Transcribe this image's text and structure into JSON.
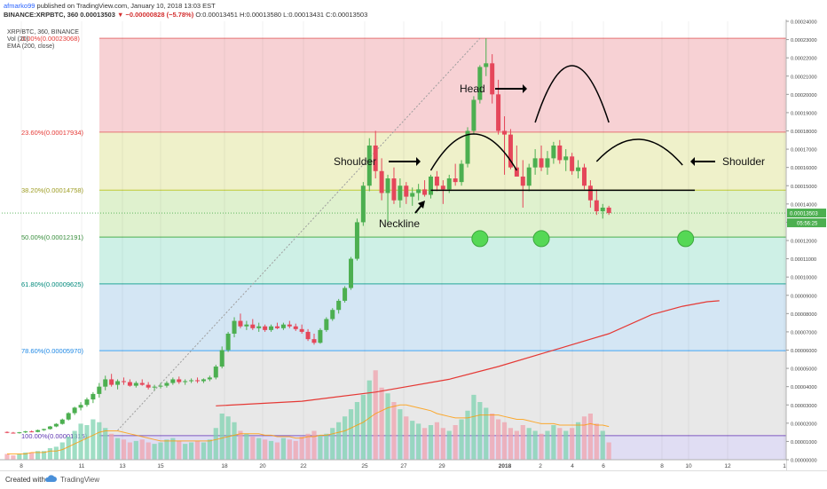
{
  "header": {
    "user": "afmarko99",
    "published": " published on TradingView.com, January 10, 2018 13:03 EST",
    "symbol_line": "BINANCE:XRPBTC, 360  0.00013503",
    "change": "▼ −0.00000828 (−5.78%)",
    "ohlc": " O:0.00013451  H:0.00013580  L:0.00013431  C:0.00013503"
  },
  "legend": {
    "symbol": "XRP/BTC, 360, BINANCE",
    "vol": "Vol (20)",
    "ema": "EMA (200, close)"
  },
  "footer": {
    "created_with": "Created with",
    "brand": "TradingView"
  },
  "colors": {
    "up": "#26a69a",
    "up_body": "#4caf50",
    "down": "#e5475a",
    "ema": "#e53935",
    "ema_vol": "#ff9800",
    "fib_line_red": "#e57373"
  },
  "chart_data": {
    "type": "candlestick",
    "ylim": [
      0.0,
      0.00024
    ],
    "y_ticks": [
      "0.00024000",
      "0.00023000",
      "0.00022000",
      "0.00021000",
      "0.00020000",
      "0.00019000",
      "0.00018000",
      "0.00017000",
      "0.00016000",
      "0.00015000",
      "0.00014000",
      "0.00013000",
      "0.00012000",
      "0.00011000",
      "0.00010000",
      "0.00009000",
      "0.00008000",
      "0.00007000",
      "0.00006000",
      "0.00005000",
      "0.00004000",
      "0.00003000",
      "0.00002000",
      "0.00001000",
      "0.00000000"
    ],
    "x_ticks": [
      "8",
      "11",
      "13",
      "15",
      "18",
      "20",
      "22",
      "25",
      "27",
      "29",
      "2018",
      "2",
      "4",
      "6",
      "8",
      "10",
      "12",
      "1"
    ],
    "last_price_label": "0.00013503",
    "countdown_label": "05:56:25",
    "fib_levels": [
      {
        "label": "0.00%(0.00023068)",
        "value": 0.00023068
      },
      {
        "label": "23.60%(0.00017934)",
        "value": 0.00017934
      },
      {
        "label": "38.20%(0.00014758)",
        "value": 0.00014758
      },
      {
        "label": "50.00%(0.00012191)",
        "value": 0.00012191
      },
      {
        "label": "61.80%(0.00009625)",
        "value": 9.625e-05
      },
      {
        "label": "78.60%(0.00005970)",
        "value": 5.97e-05
      },
      {
        "label": "100.00%(0.00001315)",
        "value": 1.315e-05
      }
    ],
    "candles": [
      [
        1.52e-05,
        1.55e-05,
        1.45e-05,
        1.48e-05
      ],
      [
        1.48e-05,
        1.52e-05,
        1.44e-05,
        1.46e-05
      ],
      [
        1.46e-05,
        1.52e-05,
        1.43e-05,
        1.5e-05
      ],
      [
        1.5e-05,
        1.58e-05,
        1.46e-05,
        1.55e-05
      ],
      [
        1.55e-05,
        1.6e-05,
        1.5e-05,
        1.52e-05
      ],
      [
        1.52e-05,
        1.65e-05,
        1.5e-05,
        1.62e-05
      ],
      [
        1.62e-05,
        1.7e-05,
        1.58e-05,
        1.68e-05
      ],
      [
        1.68e-05,
        1.85e-05,
        1.65e-05,
        1.82e-05
      ],
      [
        1.82e-05,
        2e-05,
        1.78e-05,
        1.96e-05
      ],
      [
        1.96e-05,
        2.25e-05,
        1.92e-05,
        2.2e-05
      ],
      [
        2.2e-05,
        2.6e-05,
        2.15e-05,
        2.55e-05
      ],
      [
        2.55e-05,
        2.9e-05,
        2.45e-05,
        2.85e-05
      ],
      [
        2.85e-05,
        3.15e-05,
        2.7e-05,
        3e-05
      ],
      [
        3e-05,
        3.4e-05,
        2.9e-05,
        3.3e-05
      ],
      [
        3.3e-05,
        3.7e-05,
        3.1e-05,
        3.6e-05
      ],
      [
        3.6e-05,
        4.2e-05,
        3.4e-05,
        4e-05
      ],
      [
        4e-05,
        4.6e-05,
        3.8e-05,
        4.4e-05
      ],
      [
        4.4e-05,
        4.7e-05,
        4e-05,
        4.1e-05
      ],
      [
        4.1e-05,
        4.4e-05,
        3.85e-05,
        4.3e-05
      ],
      [
        4.3e-05,
        4.5e-05,
        4.1e-05,
        4.25e-05
      ],
      [
        4.25e-05,
        4.4e-05,
        4e-05,
        4.05e-05
      ],
      [
        4.05e-05,
        4.3e-05,
        3.95e-05,
        4.2e-05
      ],
      [
        4.2e-05,
        4.4e-05,
        4.05e-05,
        4.1e-05
      ],
      [
        4.1e-05,
        4.25e-05,
        3.85e-05,
        3.95e-05
      ],
      [
        3.95e-05,
        4.1e-05,
        3.8e-05,
        4e-05
      ],
      [
        4e-05,
        4.2e-05,
        3.9e-05,
        4.05e-05
      ],
      [
        4.05e-05,
        4.3e-05,
        3.95e-05,
        4.2e-05
      ],
      [
        4.2e-05,
        4.5e-05,
        4.1e-05,
        4.4e-05
      ],
      [
        4.4e-05,
        4.55e-05,
        4.15e-05,
        4.25e-05
      ],
      [
        4.25e-05,
        4.4e-05,
        4.1e-05,
        4.3e-05
      ],
      [
        4.3e-05,
        4.45e-05,
        4.2e-05,
        4.35e-05
      ],
      [
        4.35e-05,
        4.5e-05,
        4.2e-05,
        4.3e-05
      ],
      [
        4.3e-05,
        4.45e-05,
        4.2e-05,
        4.4e-05
      ],
      [
        4.4e-05,
        4.6e-05,
        4.3e-05,
        4.5e-05
      ],
      [
        4.5e-05,
        5.2e-05,
        4.4e-05,
        5.1e-05
      ],
      [
        5.1e-05,
        6.2e-05,
        5e-05,
        6e-05
      ],
      [
        6e-05,
        7e-05,
        5.9e-05,
        6.9e-05
      ],
      [
        6.9e-05,
        7.8e-05,
        6.7e-05,
        7.6e-05
      ],
      [
        7.6e-05,
        8e-05,
        7.2e-05,
        7.3e-05
      ],
      [
        7.3e-05,
        7.6e-05,
        7.1e-05,
        7.4e-05
      ],
      [
        7.4e-05,
        7.7e-05,
        7.1e-05,
        7.2e-05
      ],
      [
        7.2e-05,
        7.5e-05,
        7e-05,
        7.3e-05
      ],
      [
        7.3e-05,
        7.4e-05,
        7e-05,
        7.1e-05
      ],
      [
        7.1e-05,
        7.4e-05,
        7e-05,
        7.3e-05
      ],
      [
        7.3e-05,
        7.5e-05,
        7.15e-05,
        7.2e-05
      ],
      [
        7.2e-05,
        7.5e-05,
        7.1e-05,
        7.4e-05
      ],
      [
        7.4e-05,
        7.6e-05,
        7.2e-05,
        7.3e-05
      ],
      [
        7.3e-05,
        7.45e-05,
        7.05e-05,
        7.15e-05
      ],
      [
        7.15e-05,
        7.4e-05,
        6.9e-05,
        7e-05
      ],
      [
        7e-05,
        7.15e-05,
        6.5e-05,
        6.6e-05
      ],
      [
        6.6e-05,
        6.9e-05,
        6.3e-05,
        6.4e-05
      ],
      [
        6.4e-05,
        7.2e-05,
        6.35e-05,
        7.1e-05
      ],
      [
        7.1e-05,
        7.8e-05,
        7e-05,
        7.7e-05
      ],
      [
        7.7e-05,
        8.3e-05,
        7.6e-05,
        8.2e-05
      ],
      [
        8.2e-05,
        8.8e-05,
        8e-05,
        8.7e-05
      ],
      [
        8.7e-05,
        9.5e-05,
        8.6e-05,
        9.4e-05
      ],
      [
        9.4e-05,
        0.000111,
        9.3e-05,
        0.00011
      ],
      [
        0.00011,
        0.000132,
        0.000109,
        0.00013
      ],
      [
        0.00013,
        0.000152,
        0.000128,
        0.00015
      ],
      [
        0.00015,
        0.000176,
        0.000147,
        0.000172
      ],
      [
        0.000172,
        0.00018,
        0.000154,
        0.000158
      ],
      [
        0.000158,
        0.000165,
        0.000142,
        0.000146
      ],
      [
        0.000146,
        0.000156,
        0.00013,
        0.000154
      ],
      [
        0.000154,
        0.00016,
        0.00014,
        0.000142
      ],
      [
        0.000142,
        0.000154,
        0.000138,
        0.00015
      ],
      [
        0.00015,
        0.000152,
        0.00014,
        0.000144
      ],
      [
        0.000144,
        0.000149,
        0.000139,
        0.000146
      ],
      [
        0.000146,
        0.000151,
        0.000142,
        0.000148
      ],
      [
        0.000148,
        0.000153,
        0.000144,
        0.000145
      ],
      [
        0.000145,
        0.000156,
        0.000143,
        0.000155
      ],
      [
        0.000155,
        0.000158,
        0.000147,
        0.00015
      ],
      [
        0.00015,
        0.000153,
        0.00014,
        0.000148
      ],
      [
        0.000148,
        0.000156,
        0.000146,
        0.000154
      ],
      [
        0.000154,
        0.000162,
        0.00015,
        0.000152
      ],
      [
        0.000152,
        0.000164,
        0.00015,
        0.000162
      ],
      [
        0.000162,
        0.000182,
        0.00016,
        0.00018
      ],
      [
        0.00018,
        0.000199,
        0.000178,
        0.000197
      ],
      [
        0.000197,
        0.000216,
        0.000195,
        0.000215
      ],
      [
        0.000215,
        0.0002307,
        0.00021,
        0.000217
      ],
      [
        0.000217,
        0.000222,
        0.000195,
        0.0002
      ],
      [
        0.0002,
        0.000208,
        0.000178,
        0.00018
      ],
      [
        0.00018,
        0.000188,
        0.000156,
        0.000178
      ],
      [
        0.000178,
        0.000181,
        0.000159,
        0.00016
      ],
      [
        0.00016,
        0.000172,
        0.000155,
        0.000155
      ],
      [
        0.000155,
        0.000164,
        0.000138,
        0.00015
      ],
      [
        0.00015,
        0.000162,
        0.000147,
        0.00016
      ],
      [
        0.00016,
        0.00017,
        0.000156,
        0.000165
      ],
      [
        0.000165,
        0.000172,
        0.000158,
        0.00016
      ],
      [
        0.00016,
        0.000169,
        0.000156,
        0.000165
      ],
      [
        0.000165,
        0.000174,
        0.000162,
        0.000172
      ],
      [
        0.000172,
        0.000175,
        0.000162,
        0.000164
      ],
      [
        0.000164,
        0.00017,
        0.000158,
        0.000166
      ],
      [
        0.000166,
        0.000168,
        0.000156,
        0.000158
      ],
      [
        0.000158,
        0.000164,
        0.000154,
        0.00016
      ],
      [
        0.00016,
        0.000162,
        0.000148,
        0.00015
      ],
      [
        0.00015,
        0.000153,
        0.000138,
        0.000142
      ],
      [
        0.000142,
        0.000148,
        0.000134,
        0.000136
      ],
      [
        0.000136,
        0.00014,
        0.000132,
        0.000138
      ],
      [
        0.000138,
        0.000139,
        0.000134,
        0.000135
      ]
    ],
    "volume_ylim": [
      0,
      80
    ],
    "volumes": [
      4,
      3,
      4,
      5,
      5,
      6,
      6,
      8,
      9,
      12,
      16,
      20,
      25,
      24,
      28,
      26,
      22,
      18,
      15,
      14,
      12,
      13,
      14,
      12,
      11,
      12,
      14,
      15,
      13,
      11,
      12,
      13,
      12,
      14,
      22,
      32,
      30,
      26,
      20,
      18,
      16,
      15,
      14,
      13,
      12,
      15,
      14,
      13,
      16,
      18,
      20,
      17,
      18,
      22,
      26,
      30,
      35,
      40,
      45,
      55,
      62,
      50,
      46,
      40,
      35,
      30,
      27,
      25,
      22,
      24,
      26,
      22,
      20,
      24,
      28,
      34,
      45,
      40,
      36,
      32,
      28,
      26,
      22,
      20,
      24,
      22,
      20,
      18,
      20,
      24,
      22,
      20,
      22,
      26,
      30,
      32,
      25,
      20,
      12
    ],
    "volume_ma": [
      4,
      4,
      4,
      4,
      5,
      5,
      5,
      6,
      6,
      7,
      9,
      11,
      13,
      15,
      17,
      19,
      20,
      20,
      20,
      19,
      18,
      17,
      16,
      15,
      14,
      13,
      13,
      13,
      13,
      13,
      13,
      13,
      13,
      13,
      14,
      15,
      16,
      17,
      18,
      18,
      18,
      18,
      17,
      17,
      16,
      16,
      16,
      15,
      15,
      16,
      16,
      17,
      17,
      18,
      19,
      20,
      22,
      24,
      26,
      29,
      32,
      34,
      36,
      37,
      38,
      38,
      37,
      36,
      35,
      34,
      32,
      31,
      30,
      29,
      29,
      29,
      30,
      31,
      31,
      31,
      31,
      30,
      29,
      28,
      28,
      27,
      26,
      25,
      25,
      25,
      24,
      24,
      24,
      24,
      24,
      25,
      24,
      24,
      23
    ],
    "ema_series": [
      [
        34,
        2.95e-05
      ],
      [
        48,
        3.2e-05
      ],
      [
        60,
        3.7e-05
      ],
      [
        72,
        4.4e-05
      ],
      [
        80,
        5.1e-05
      ],
      [
        88,
        5.9e-05
      ],
      [
        98,
        6.9e-05
      ],
      [
        105,
        7.95e-05
      ],
      [
        110,
        8.4e-05
      ],
      [
        114,
        8.65e-05
      ],
      [
        116,
        8.7e-05
      ]
    ],
    "annotations": [
      {
        "label": "Head"
      },
      {
        "label": "Shoulder",
        "side": "left"
      },
      {
        "label": "Shoulder",
        "side": "right"
      },
      {
        "label": "Neckline"
      }
    ],
    "neckline_value": 0.0001475,
    "support_marks_value": 0.0001215
  }
}
